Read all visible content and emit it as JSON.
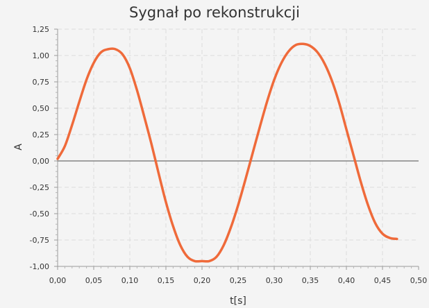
{
  "chart_data": {
    "type": "line",
    "title": "Sygnał po rekonstrukcji",
    "xlabel": "t[s]",
    "ylabel": "A",
    "xlim": [
      0,
      0.5
    ],
    "ylim": [
      -1.0,
      1.25
    ],
    "x_ticks": [
      "0,00",
      "0,05",
      "0,10",
      "0,15",
      "0,20",
      "0,25",
      "0,30",
      "0,35",
      "0,40",
      "0,45",
      "0,50"
    ],
    "y_ticks": [
      "1,25",
      "1,00",
      "0,75",
      "0,50",
      "0,25",
      "0,00",
      "-0,25",
      "-0,50",
      "-0,75",
      "-1,00"
    ],
    "grid": true,
    "series": [
      {
        "color": "#ef6a3a",
        "x": [
          0.0,
          0.01,
          0.02,
          0.03,
          0.04,
          0.05,
          0.06,
          0.07,
          0.08,
          0.09,
          0.1,
          0.11,
          0.12,
          0.13,
          0.14,
          0.15,
          0.16,
          0.17,
          0.18,
          0.19,
          0.2,
          0.21,
          0.22,
          0.23,
          0.24,
          0.25,
          0.26,
          0.27,
          0.28,
          0.29,
          0.3,
          0.31,
          0.32,
          0.33,
          0.34,
          0.35,
          0.36,
          0.37,
          0.38,
          0.39,
          0.4,
          0.41,
          0.42,
          0.43,
          0.44,
          0.45,
          0.46,
          0.47
        ],
        "y": [
          0.02,
          0.14,
          0.34,
          0.56,
          0.77,
          0.93,
          1.03,
          1.06,
          1.06,
          1.01,
          0.88,
          0.67,
          0.42,
          0.16,
          -0.12,
          -0.39,
          -0.62,
          -0.8,
          -0.91,
          -0.95,
          -0.95,
          -0.95,
          -0.91,
          -0.8,
          -0.63,
          -0.42,
          -0.18,
          0.07,
          0.32,
          0.56,
          0.77,
          0.93,
          1.04,
          1.1,
          1.11,
          1.09,
          1.03,
          0.92,
          0.76,
          0.55,
          0.3,
          0.05,
          -0.2,
          -0.42,
          -0.59,
          -0.69,
          -0.73,
          -0.74
        ]
      }
    ]
  }
}
